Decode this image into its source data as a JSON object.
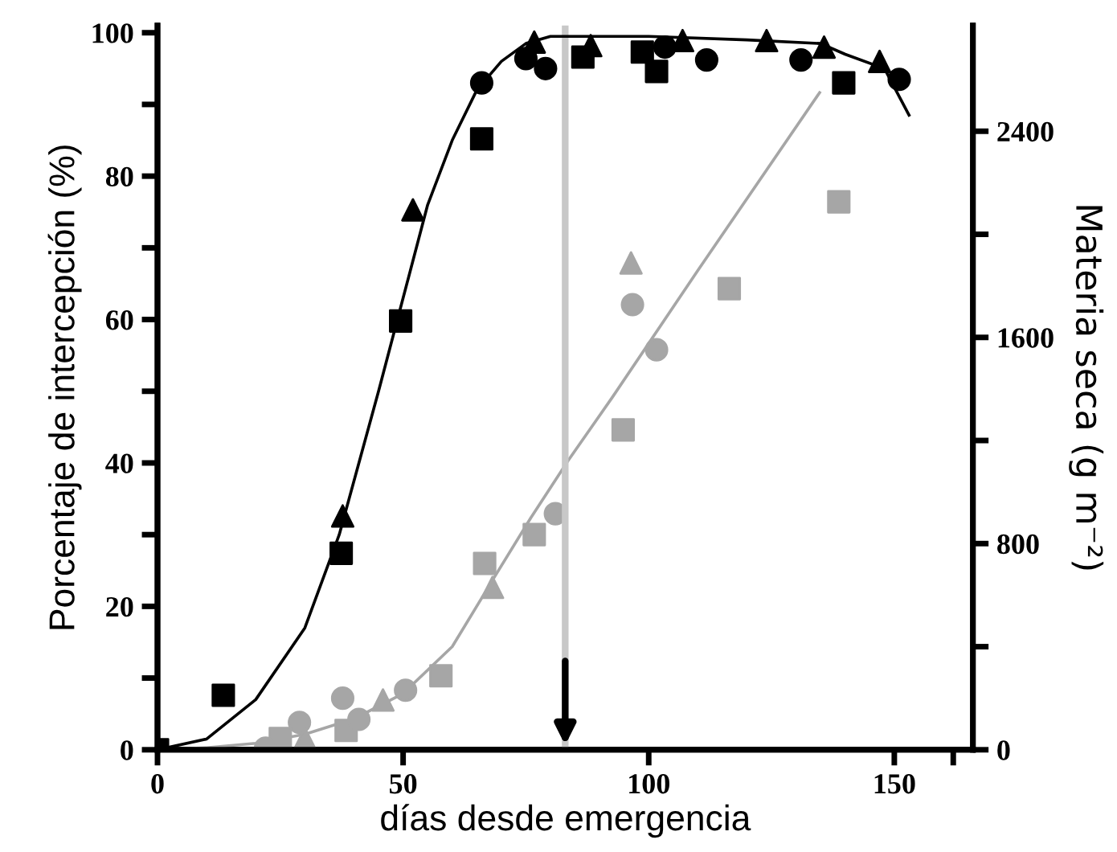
{
  "chart_data": {
    "type": "scatter",
    "xlabel": "días desde emergencia",
    "ylabel": "Porcentaje de intercepción (%)",
    "y2label": "Materia seca (g m⁻²)",
    "xlim": [
      0,
      166
    ],
    "xticks": [
      0,
      50,
      100,
      150,
      {
        "value": 162,
        "label": null
      }
    ],
    "ylim": [
      0,
      101
    ],
    "yticks": [
      0,
      {
        "value": 10,
        "label": null
      },
      20,
      {
        "value": 30,
        "label": null
      },
      40,
      {
        "value": 50,
        "label": null
      },
      60,
      {
        "value": 70,
        "label": null
      },
      80,
      {
        "value": 90,
        "label": null
      },
      100
    ],
    "y2lim": [
      0,
      2810
    ],
    "y2ticks": [
      0,
      {
        "value": 400,
        "label": null
      },
      800,
      {
        "value": 1200,
        "label": null
      },
      1600,
      {
        "value": 2000,
        "label": null
      },
      2400
    ],
    "grid": false,
    "ref_lines": [
      {
        "axis": "x",
        "value": 83,
        "color": "#c8c8c8"
      }
    ],
    "series": [
      {
        "marker": "square",
        "color": "#000000",
        "x": [
          0,
          13.4,
          37.4,
          49.5,
          66,
          86.6,
          98.7,
          101.6,
          139.7
        ],
        "values": [
          0,
          7.6,
          27.4,
          59.8,
          85.2,
          96.6,
          97.3,
          94.6,
          93
        ]
      },
      {
        "marker": "circle",
        "color": "#000000",
        "x": [
          66,
          75,
          79,
          103.3,
          111.8,
          131,
          151
        ],
        "values": [
          93,
          96.4,
          95,
          98,
          96.2,
          96.2,
          93.5
        ]
      },
      {
        "marker": "triangle",
        "color": "#000000",
        "x": [
          37.7,
          52,
          76.7,
          88.2,
          106.9,
          124,
          135.7,
          147
        ],
        "values": [
          32.6,
          75.3,
          98.7,
          98.2,
          98.9,
          98.9,
          98,
          96
        ]
      },
      {
        "type": "line",
        "marker": "none",
        "color": "#000000",
        "x": [
          0,
          10,
          20,
          30,
          37,
          45,
          50,
          55,
          60,
          65,
          70,
          75,
          80,
          100,
          120,
          135,
          140,
          148,
          153
        ],
        "values": [
          0,
          1.5,
          7,
          17,
          30,
          50,
          63,
          76,
          85,
          92,
          96,
          98.5,
          99.5,
          99.5,
          99,
          98.5,
          97,
          95,
          88.5
        ]
      },
      {
        "axis": "y2",
        "marker": "square",
        "color": "#a6a6a6",
        "x": [
          25,
          38.4,
          57.7,
          66.6,
          76.7,
          94.8,
          116.4,
          138.7
        ],
        "values": [
          44,
          75,
          287,
          723,
          835,
          1241,
          1789,
          2126
        ]
      },
      {
        "axis": "y2",
        "marker": "circle",
        "color": "#a6a6a6",
        "x": [
          22,
          28.9,
          37.7,
          41,
          50.5,
          81,
          96.7,
          101.6
        ],
        "values": [
          6,
          106,
          200,
          118,
          231,
          916,
          1727,
          1552
        ]
      },
      {
        "axis": "y2",
        "marker": "triangle",
        "color": "#a6a6a6",
        "x": [
          30,
          45.9,
          68.2,
          96.4
        ],
        "values": [
          44,
          193,
          630,
          1889
        ]
      },
      {
        "type": "line",
        "axis": "y2",
        "marker": "none",
        "color": "#a6a6a6",
        "x": [
          0,
          10,
          20,
          30,
          40,
          50,
          60,
          68.5,
          76,
          83.6,
          92.5,
          110,
          134.8
        ],
        "values": [
          0,
          8,
          25,
          60,
          120,
          218,
          400,
          667,
          900,
          1122,
          1365,
          1860,
          2550
        ]
      }
    ]
  }
}
